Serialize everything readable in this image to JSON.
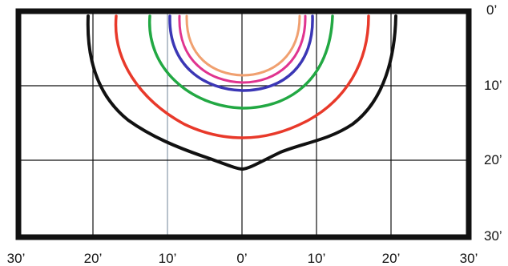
{
  "diagram": {
    "x_ticks": [
      "30’",
      "20’",
      "10’",
      "0’",
      "10’",
      "20’",
      "30’"
    ],
    "y_ticks": [
      "0’",
      "10’",
      "20’",
      "30’"
    ],
    "contours": [
      {
        "color": "#111111"
      },
      {
        "color": "#e8392a"
      },
      {
        "color": "#22a843"
      },
      {
        "color": "#3b37b5"
      },
      {
        "color": "#e0348f"
      },
      {
        "color": "#f0a070"
      }
    ]
  }
}
